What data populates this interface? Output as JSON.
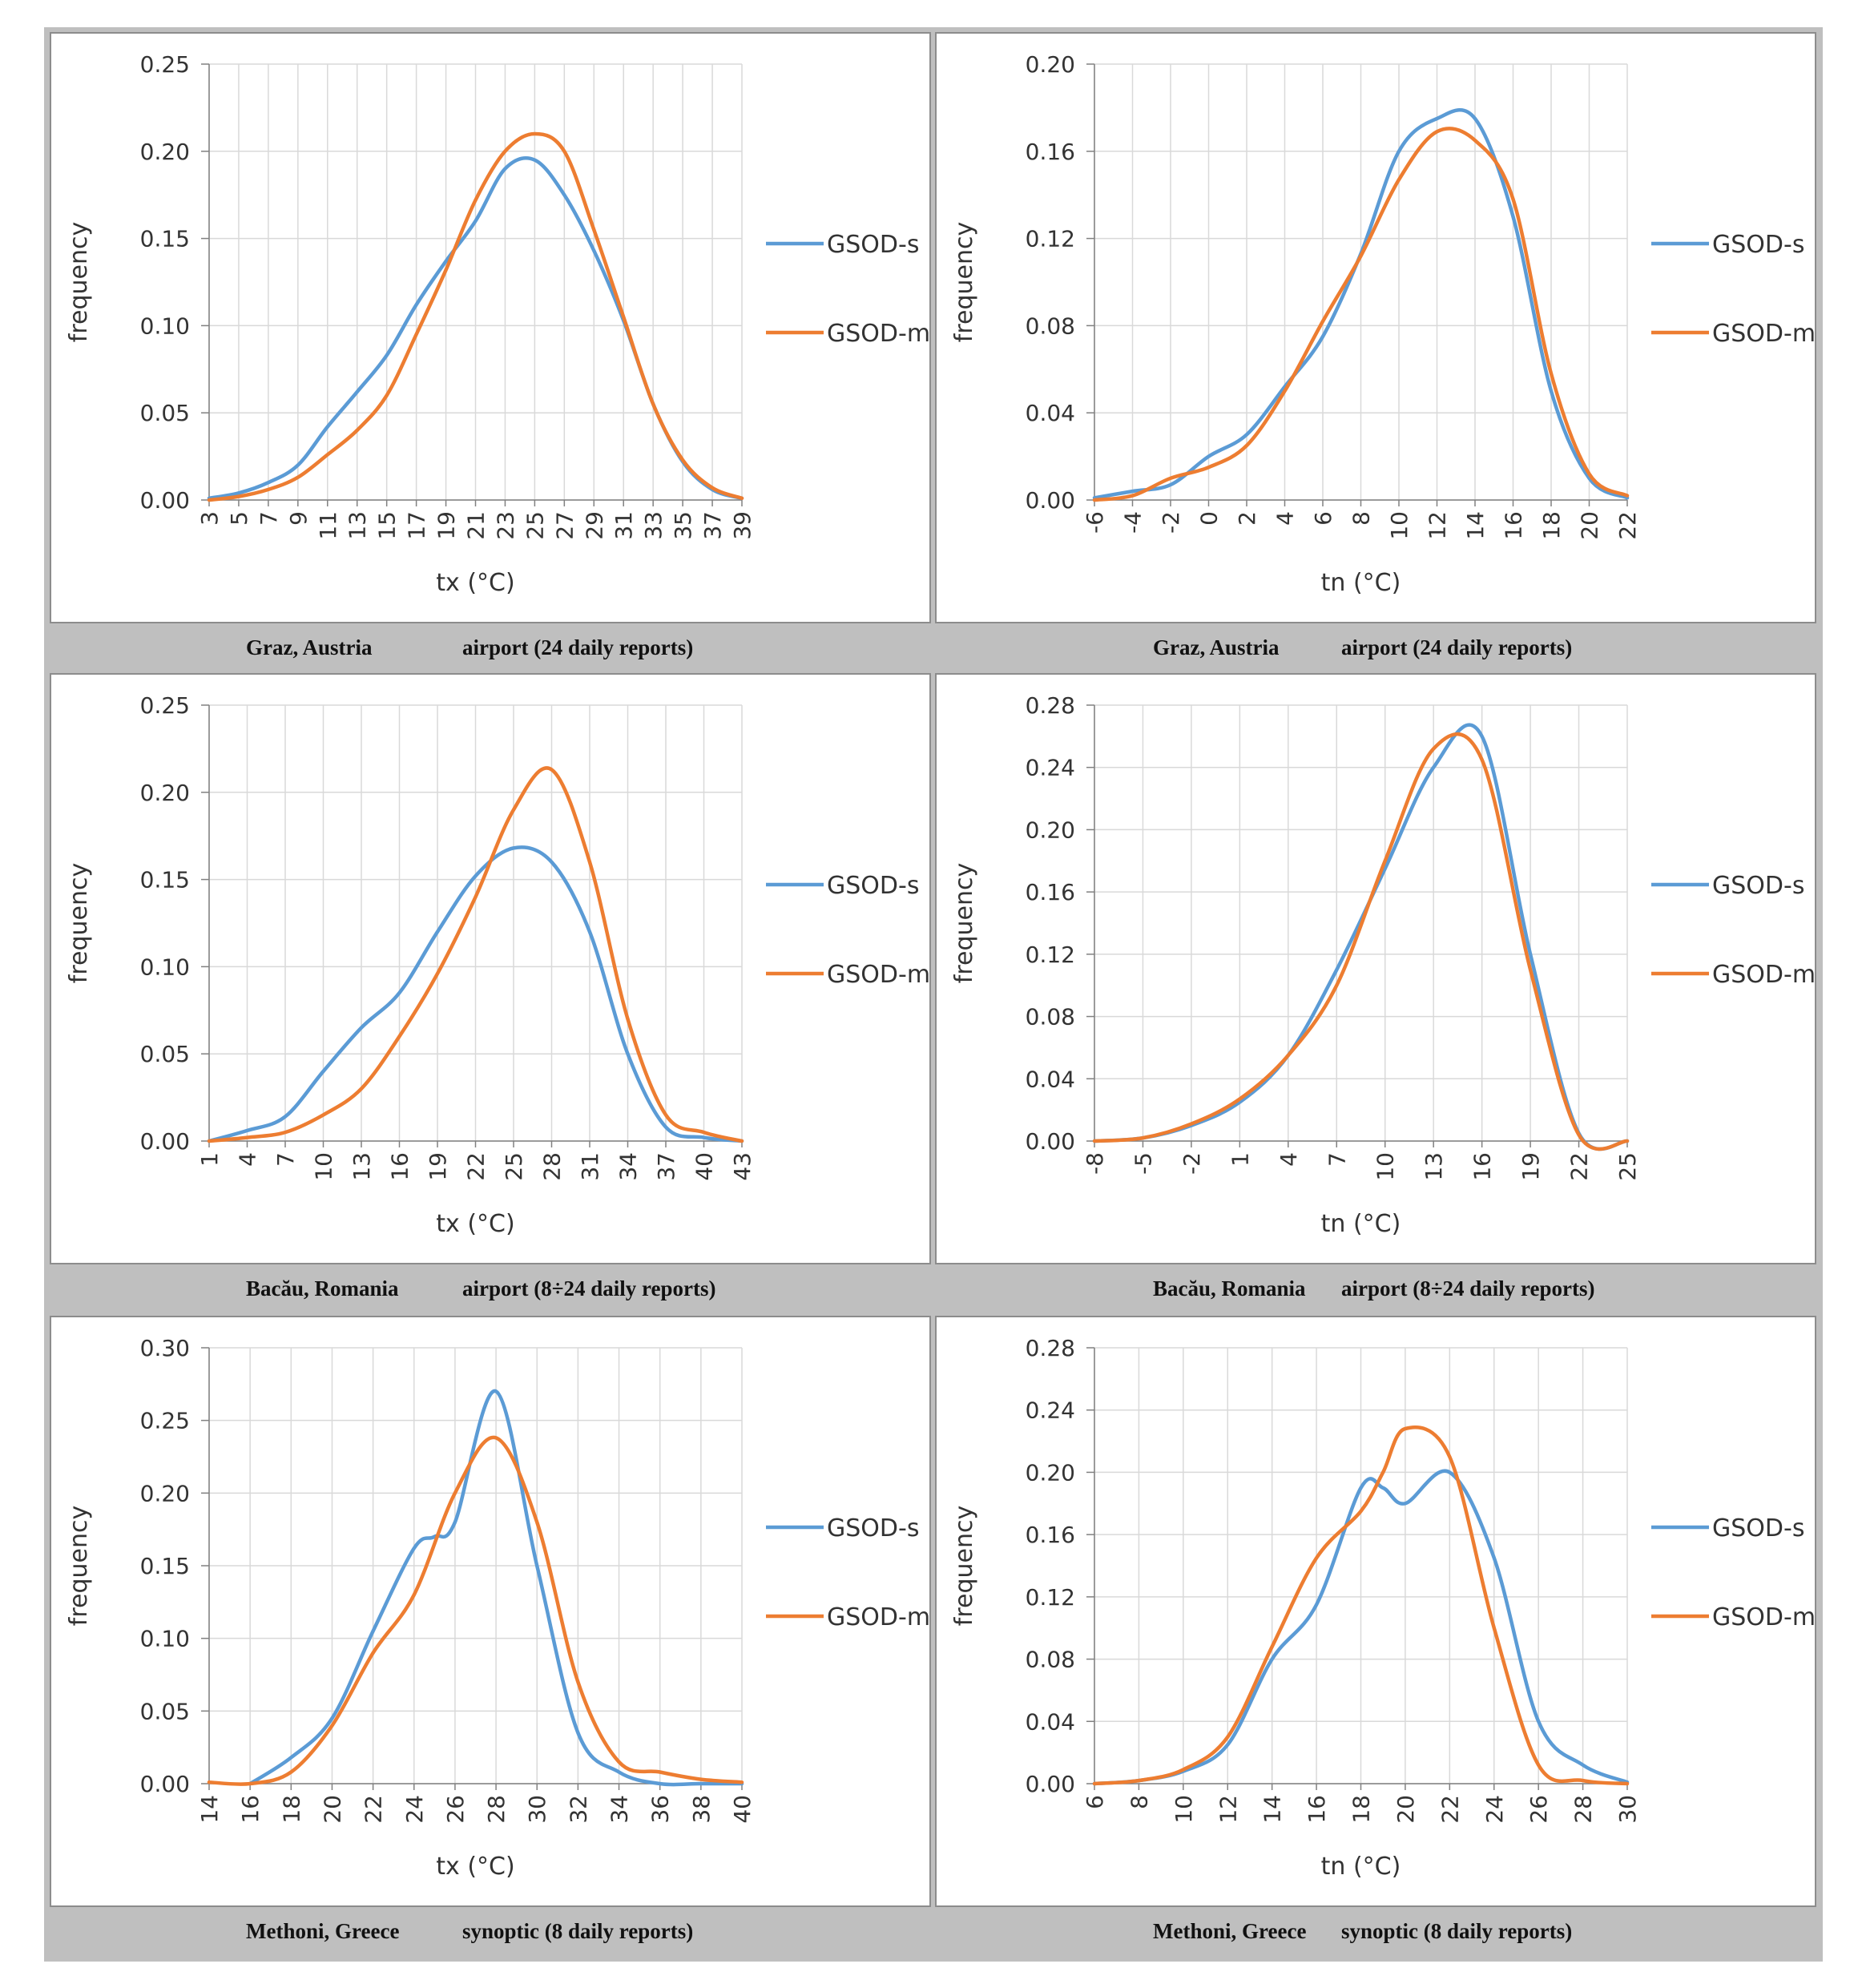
{
  "colors": {
    "series_s": "#5b9bd5",
    "series_m": "#ed7d31",
    "grid": "#d9d9d9",
    "axis": "#808080",
    "frame_bg": "#bfbfbf"
  },
  "chart_data": [
    {
      "type": "line",
      "title": "",
      "xlabel": "tx (°C)",
      "ylabel": "frequency",
      "xlim": [
        3,
        39
      ],
      "ylim": [
        0,
        0.25
      ],
      "xticks": [
        "3",
        "5",
        "7",
        "9",
        "11",
        "13",
        "15",
        "17",
        "19",
        "21",
        "23",
        "25",
        "27",
        "29",
        "31",
        "33",
        "35",
        "37",
        "39"
      ],
      "yticks": [
        "0.00",
        "0.05",
        "0.10",
        "0.15",
        "0.20",
        "0.25"
      ],
      "caption_station": "Graz, Austria",
      "caption_type": "airport (24 daily reports)",
      "series": [
        {
          "name": "GSOD-s",
          "x": [
            3,
            5,
            7,
            9,
            11,
            13,
            15,
            17,
            19,
            21,
            23,
            25,
            27,
            29,
            31,
            33,
            35,
            37,
            39
          ],
          "values": [
            0.001,
            0.004,
            0.01,
            0.02,
            0.042,
            0.062,
            0.083,
            0.112,
            0.137,
            0.16,
            0.19,
            0.195,
            0.175,
            0.143,
            0.103,
            0.055,
            0.022,
            0.006,
            0.001
          ]
        },
        {
          "name": "GSOD-m",
          "x": [
            3,
            5,
            7,
            9,
            11,
            13,
            15,
            17,
            19,
            21,
            23,
            25,
            27,
            29,
            31,
            33,
            35,
            37,
            39
          ],
          "values": [
            0.0,
            0.002,
            0.006,
            0.013,
            0.026,
            0.04,
            0.06,
            0.095,
            0.132,
            0.172,
            0.2,
            0.21,
            0.2,
            0.155,
            0.105,
            0.055,
            0.023,
            0.007,
            0.001
          ]
        }
      ]
    },
    {
      "type": "line",
      "title": "",
      "xlabel": "tn (°C)",
      "ylabel": "frequency",
      "xlim": [
        -6,
        22
      ],
      "ylim": [
        0,
        0.2
      ],
      "xticks": [
        "-6",
        "-4",
        "-2",
        "0",
        "2",
        "4",
        "6",
        "8",
        "10",
        "12",
        "14",
        "16",
        "18",
        "20",
        "22"
      ],
      "yticks": [
        "0.00",
        "0.04",
        "0.08",
        "0.12",
        "0.16",
        "0.20"
      ],
      "caption_station": "Graz, Austria",
      "caption_type": "airport (24 daily reports)",
      "series": [
        {
          "name": "GSOD-s",
          "x": [
            -6,
            -4,
            -2,
            0,
            2,
            4,
            6,
            8,
            10,
            12,
            14,
            16,
            18,
            20,
            22
          ],
          "values": [
            0.001,
            0.004,
            0.007,
            0.02,
            0.03,
            0.052,
            0.075,
            0.113,
            0.16,
            0.175,
            0.175,
            0.13,
            0.05,
            0.01,
            0.001
          ]
        },
        {
          "name": "GSOD-m",
          "x": [
            -6,
            -4,
            -2,
            0,
            2,
            4,
            6,
            8,
            10,
            12,
            14,
            16,
            18,
            20,
            22
          ],
          "values": [
            0.0,
            0.002,
            0.01,
            0.015,
            0.025,
            0.05,
            0.082,
            0.112,
            0.147,
            0.169,
            0.165,
            0.138,
            0.058,
            0.012,
            0.002
          ]
        }
      ]
    },
    {
      "type": "line",
      "title": "",
      "xlabel": "tx (°C)",
      "ylabel": "frequency",
      "xlim": [
        1,
        43
      ],
      "ylim": [
        0,
        0.25
      ],
      "xticks": [
        "1",
        "4",
        "7",
        "10",
        "13",
        "16",
        "19",
        "22",
        "25",
        "28",
        "31",
        "34",
        "37",
        "40",
        "43"
      ],
      "yticks": [
        "0.00",
        "0.05",
        "0.10",
        "0.15",
        "0.20",
        "0.25"
      ],
      "caption_station": "Bacău, Romania",
      "caption_type": "airport (8÷24 daily reports)",
      "series": [
        {
          "name": "GSOD-s",
          "x": [
            1,
            4,
            7,
            10,
            13,
            16,
            19,
            22,
            25,
            28,
            31,
            34,
            37,
            40,
            43
          ],
          "values": [
            0.0,
            0.006,
            0.014,
            0.04,
            0.065,
            0.085,
            0.12,
            0.152,
            0.168,
            0.16,
            0.12,
            0.05,
            0.008,
            0.002,
            0.0
          ]
        },
        {
          "name": "GSOD-m",
          "x": [
            1,
            4,
            7,
            10,
            13,
            16,
            19,
            22,
            25,
            28,
            31,
            34,
            37,
            40,
            43
          ],
          "values": [
            0.0,
            0.002,
            0.005,
            0.015,
            0.03,
            0.06,
            0.096,
            0.14,
            0.19,
            0.213,
            0.16,
            0.07,
            0.015,
            0.005,
            0.0
          ]
        }
      ]
    },
    {
      "type": "line",
      "title": "",
      "xlabel": "tn (°C)",
      "ylabel": "frequency",
      "xlim": [
        -8,
        25
      ],
      "ylim": [
        0,
        0.28
      ],
      "xticks": [
        "-8",
        "-5",
        "-2",
        "1",
        "4",
        "7",
        "10",
        "13",
        "16",
        "19",
        "22",
        "25"
      ],
      "yticks": [
        "0.00",
        "0.04",
        "0.08",
        "0.12",
        "0.16",
        "0.20",
        "0.24",
        "0.28"
      ],
      "caption_station": "Bacău, Romania",
      "caption_type": "airport (8÷24 daily reports)",
      "series": [
        {
          "name": "GSOD-s",
          "x": [
            -8,
            -5,
            -2,
            1,
            4,
            7,
            10,
            13,
            16,
            19,
            22,
            25
          ],
          "values": [
            0.0,
            0.002,
            0.01,
            0.025,
            0.055,
            0.11,
            0.175,
            0.24,
            0.26,
            0.12,
            0.005,
            0.0
          ]
        },
        {
          "name": "GSOD-m",
          "x": [
            -8,
            -5,
            -2,
            1,
            4,
            7,
            10,
            13,
            16,
            19,
            22,
            25
          ],
          "values": [
            0.0,
            0.002,
            0.011,
            0.027,
            0.055,
            0.1,
            0.18,
            0.252,
            0.245,
            0.11,
            0.004,
            0.0
          ]
        }
      ]
    },
    {
      "type": "line",
      "title": "",
      "xlabel": "tx (°C)",
      "ylabel": "frequency",
      "xlim": [
        14,
        40
      ],
      "ylim": [
        0,
        0.3
      ],
      "xticks": [
        "14",
        "16",
        "18",
        "20",
        "22",
        "24",
        "26",
        "28",
        "30",
        "32",
        "34",
        "36",
        "38",
        "40"
      ],
      "yticks": [
        "0.00",
        "0.05",
        "0.10",
        "0.15",
        "0.20",
        "0.25",
        "0.30"
      ],
      "caption_station": "Methoni, Greece",
      "caption_type": "synoptic (8 daily reports)",
      "series": [
        {
          "name": "GSOD-s",
          "x": [
            16,
            18,
            20,
            22,
            24,
            25,
            26,
            28,
            30,
            32,
            34,
            36,
            38,
            40
          ],
          "values": [
            0.0,
            0.018,
            0.045,
            0.105,
            0.162,
            0.17,
            0.18,
            0.27,
            0.15,
            0.035,
            0.008,
            0.0,
            0.0,
            0.0
          ]
        },
        {
          "name": "GSOD-m",
          "x": [
            14,
            16,
            18,
            20,
            22,
            24,
            26,
            28,
            30,
            32,
            34,
            36,
            38,
            40
          ],
          "values": [
            0.001,
            0.0,
            0.008,
            0.04,
            0.09,
            0.13,
            0.2,
            0.238,
            0.18,
            0.07,
            0.015,
            0.008,
            0.003,
            0.001
          ]
        }
      ]
    },
    {
      "type": "line",
      "title": "",
      "xlabel": "tn (°C)",
      "ylabel": "frequency",
      "xlim": [
        6,
        30
      ],
      "ylim": [
        0,
        0.28
      ],
      "xticks": [
        "6",
        "8",
        "10",
        "12",
        "14",
        "16",
        "18",
        "20",
        "22",
        "24",
        "26",
        "28",
        "30"
      ],
      "yticks": [
        "0.00",
        "0.04",
        "0.08",
        "0.12",
        "0.16",
        "0.20",
        "0.24",
        "0.28"
      ],
      "caption_station": "Methoni, Greece",
      "caption_type": "synoptic (8 daily reports)",
      "series": [
        {
          "name": "GSOD-s",
          "x": [
            6,
            8,
            10,
            12,
            14,
            16,
            18,
            19,
            20,
            22,
            24,
            26,
            28,
            30
          ],
          "values": [
            0.0,
            0.002,
            0.008,
            0.025,
            0.08,
            0.115,
            0.19,
            0.19,
            0.18,
            0.2,
            0.145,
            0.04,
            0.012,
            0.001
          ]
        },
        {
          "name": "GSOD-m",
          "x": [
            6,
            8,
            10,
            12,
            14,
            16,
            18,
            19,
            20,
            22,
            24,
            26,
            28,
            30
          ],
          "values": [
            0.0,
            0.002,
            0.009,
            0.03,
            0.088,
            0.145,
            0.175,
            0.2,
            0.228,
            0.21,
            0.1,
            0.012,
            0.002,
            0.0
          ]
        }
      ]
    }
  ]
}
